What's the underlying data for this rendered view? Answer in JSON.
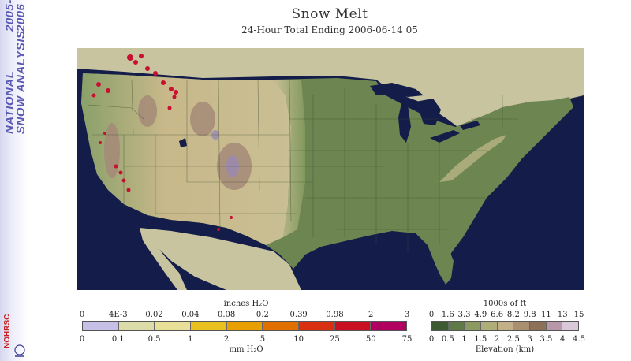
{
  "banner": {
    "line1": "NATIONAL",
    "line2": "SNOW ANALYSIS",
    "year_start": "2005-",
    "year_end": "2006",
    "logo_text": "NOHRSC"
  },
  "header": {
    "title": "Snow Melt",
    "subtitle": "24-Hour Total Ending 2006-06-14 05"
  },
  "map": {
    "region": "Contiguous United States",
    "water_color": "#141c4a",
    "land_color": "#c8c4a0",
    "low_elev_color": "#6a7f4e"
  },
  "melt_legend": {
    "top_unit": "inches H₂O",
    "top_labels": [
      "0",
      "4E-3",
      "0.02",
      "0.04",
      "0.08",
      "0.2",
      "0.39",
      "0.98",
      "2",
      "3"
    ],
    "bottom_unit": "mm H₂O",
    "bottom_labels": [
      "0",
      "0.1",
      "0.5",
      "1",
      "2",
      "5",
      "10",
      "25",
      "50",
      "75"
    ],
    "colors": [
      "#c7c0e6",
      "#dcdca8",
      "#e8e098",
      "#e8c020",
      "#e8a000",
      "#e07000",
      "#d83010",
      "#c81020",
      "#b00060"
    ]
  },
  "elev_legend": {
    "top_unit": "1000s of ft",
    "top_labels": [
      "0",
      "1.6",
      "3.3",
      "4.9",
      "6.6",
      "8.2",
      "9.8",
      "11",
      "13",
      "15"
    ],
    "bottom_unit": "Elevation (km)",
    "bottom_labels": [
      "0",
      "0.5",
      "1",
      "1.5",
      "2",
      "2.5",
      "3",
      "3.5",
      "4",
      "4.5"
    ],
    "colors": [
      "#3e5a32",
      "#5f7a48",
      "#8a9a60",
      "#b0ae78",
      "#c2b088",
      "#a89070",
      "#8c7058",
      "#b898a8",
      "#d8c8d8"
    ]
  }
}
